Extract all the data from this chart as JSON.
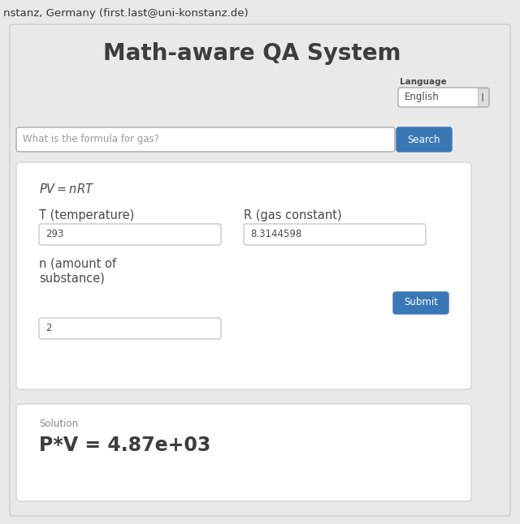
{
  "bg_color": "#e9e9e9",
  "title": "Math-aware QA System",
  "title_color": "#3d3d3d",
  "title_fontsize": 20,
  "lang_label": "Language",
  "lang_value": "English",
  "search_placeholder": "What is the formula for gas?",
  "search_btn_text": "Search",
  "search_btn_color": "#3a78b5",
  "formula_text": "$PV = nRT$",
  "field1_label": "T (temperature)",
  "field1_value": "293",
  "field2_label": "R (gas constant)",
  "field2_value": "8.3144598",
  "field3_label": "n (amount of\nsubstance)",
  "field3_value": "2",
  "submit_btn_text": "Submit",
  "submit_btn_color": "#3a78b5",
  "solution_label": "Solution",
  "solution_value": "P*V = 4.87e+03",
  "card_bg": "#ffffff",
  "card_border": "#d4d4d4",
  "input_border": "#c8c8c8",
  "text_dark": "#4a4a4a",
  "text_gray": "#888888",
  "top_text": "nstanz, Germany (first.last@uni-konstanz.de)",
  "top_text_color": "#333333"
}
